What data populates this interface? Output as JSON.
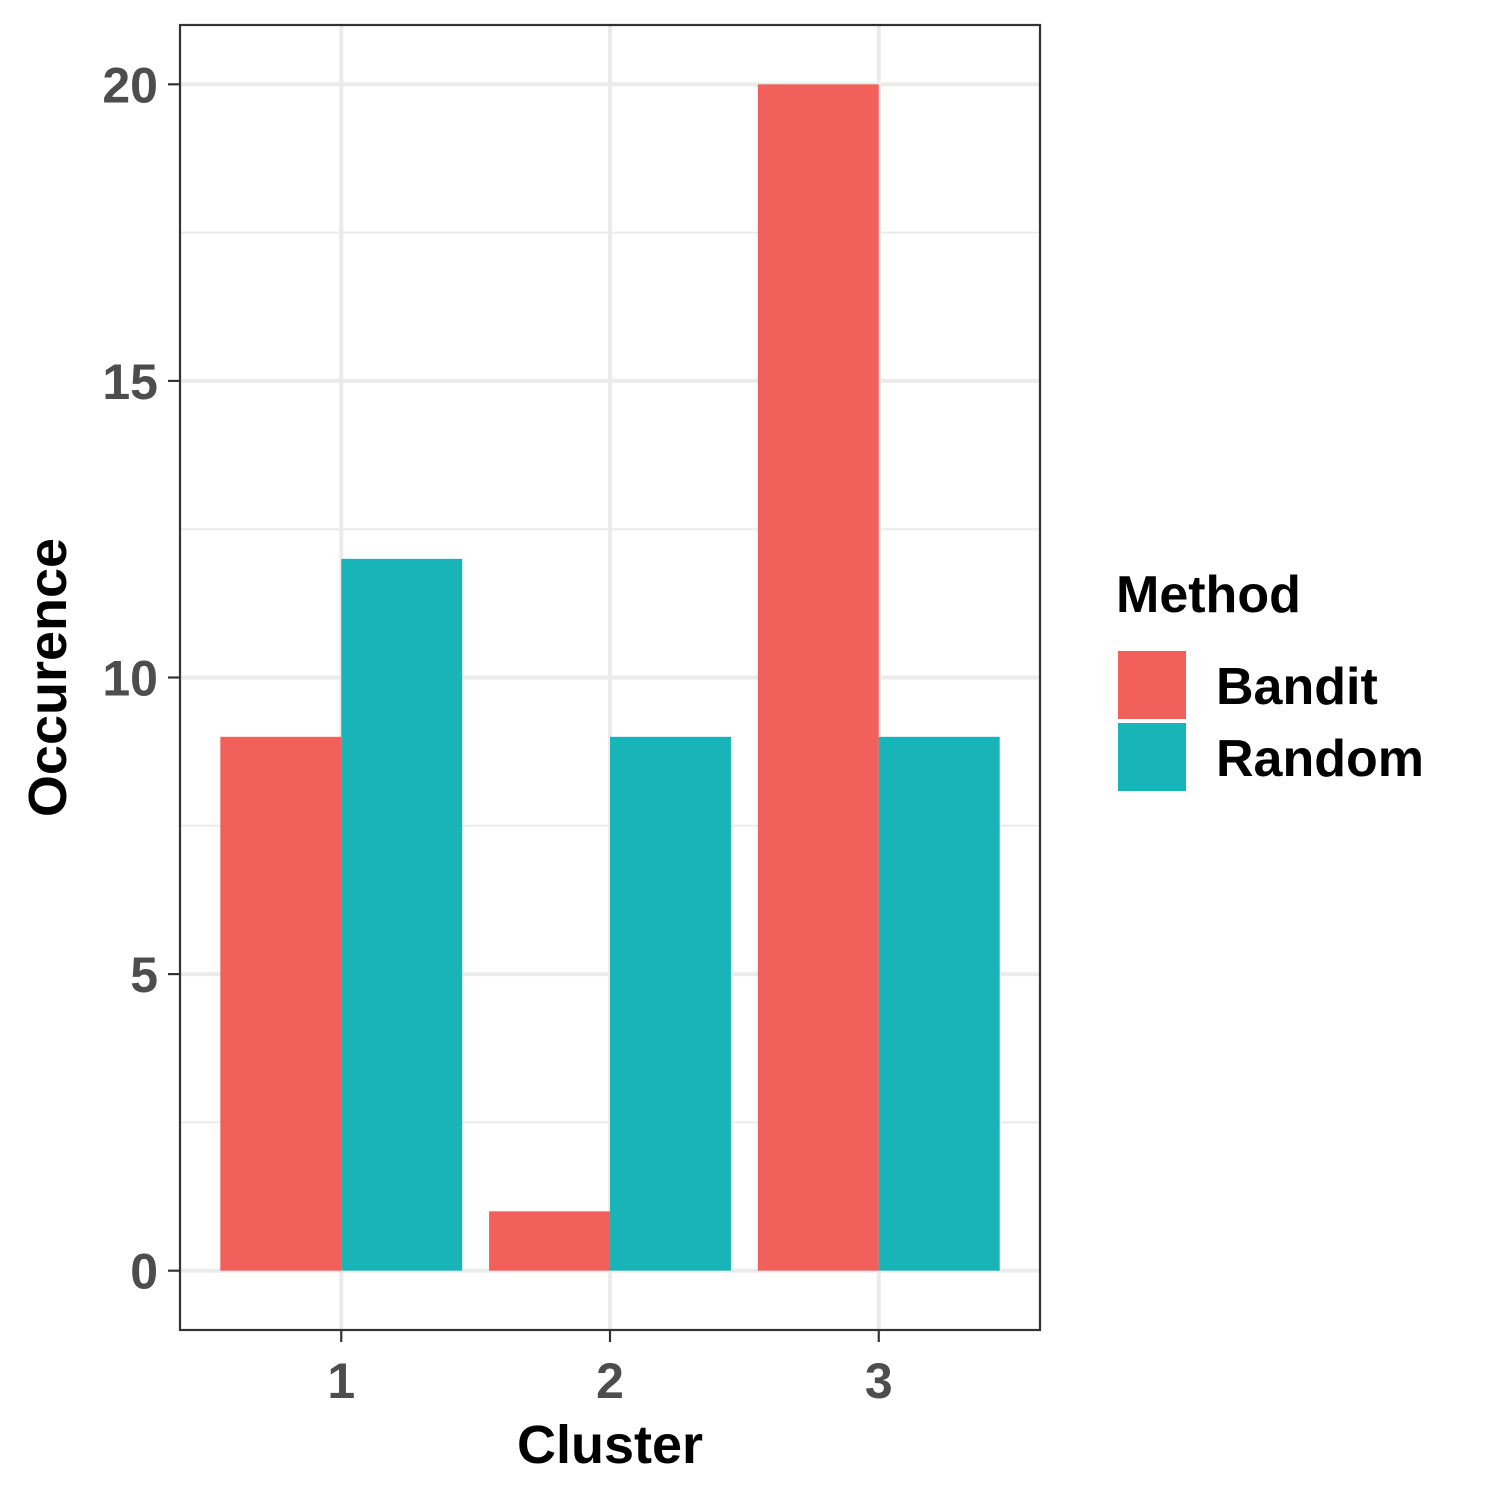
{
  "chart_data": {
    "type": "bar",
    "categories": [
      "1",
      "2",
      "3"
    ],
    "series": [
      {
        "name": "Bandit",
        "values": [
          9,
          1,
          20
        ],
        "color": "#F2605C"
      },
      {
        "name": "Random",
        "values": [
          12,
          9,
          9
        ],
        "color": "#19B4B8"
      }
    ],
    "xlabel": "Cluster",
    "ylabel": "Occurence",
    "ylim": [
      -1,
      21
    ],
    "yticks": [
      0,
      5,
      10,
      15,
      20
    ],
    "yminor": [
      2.5,
      7.5,
      12.5,
      17.5
    ],
    "grid": true,
    "legend": {
      "title": "Method",
      "position": "right"
    }
  }
}
